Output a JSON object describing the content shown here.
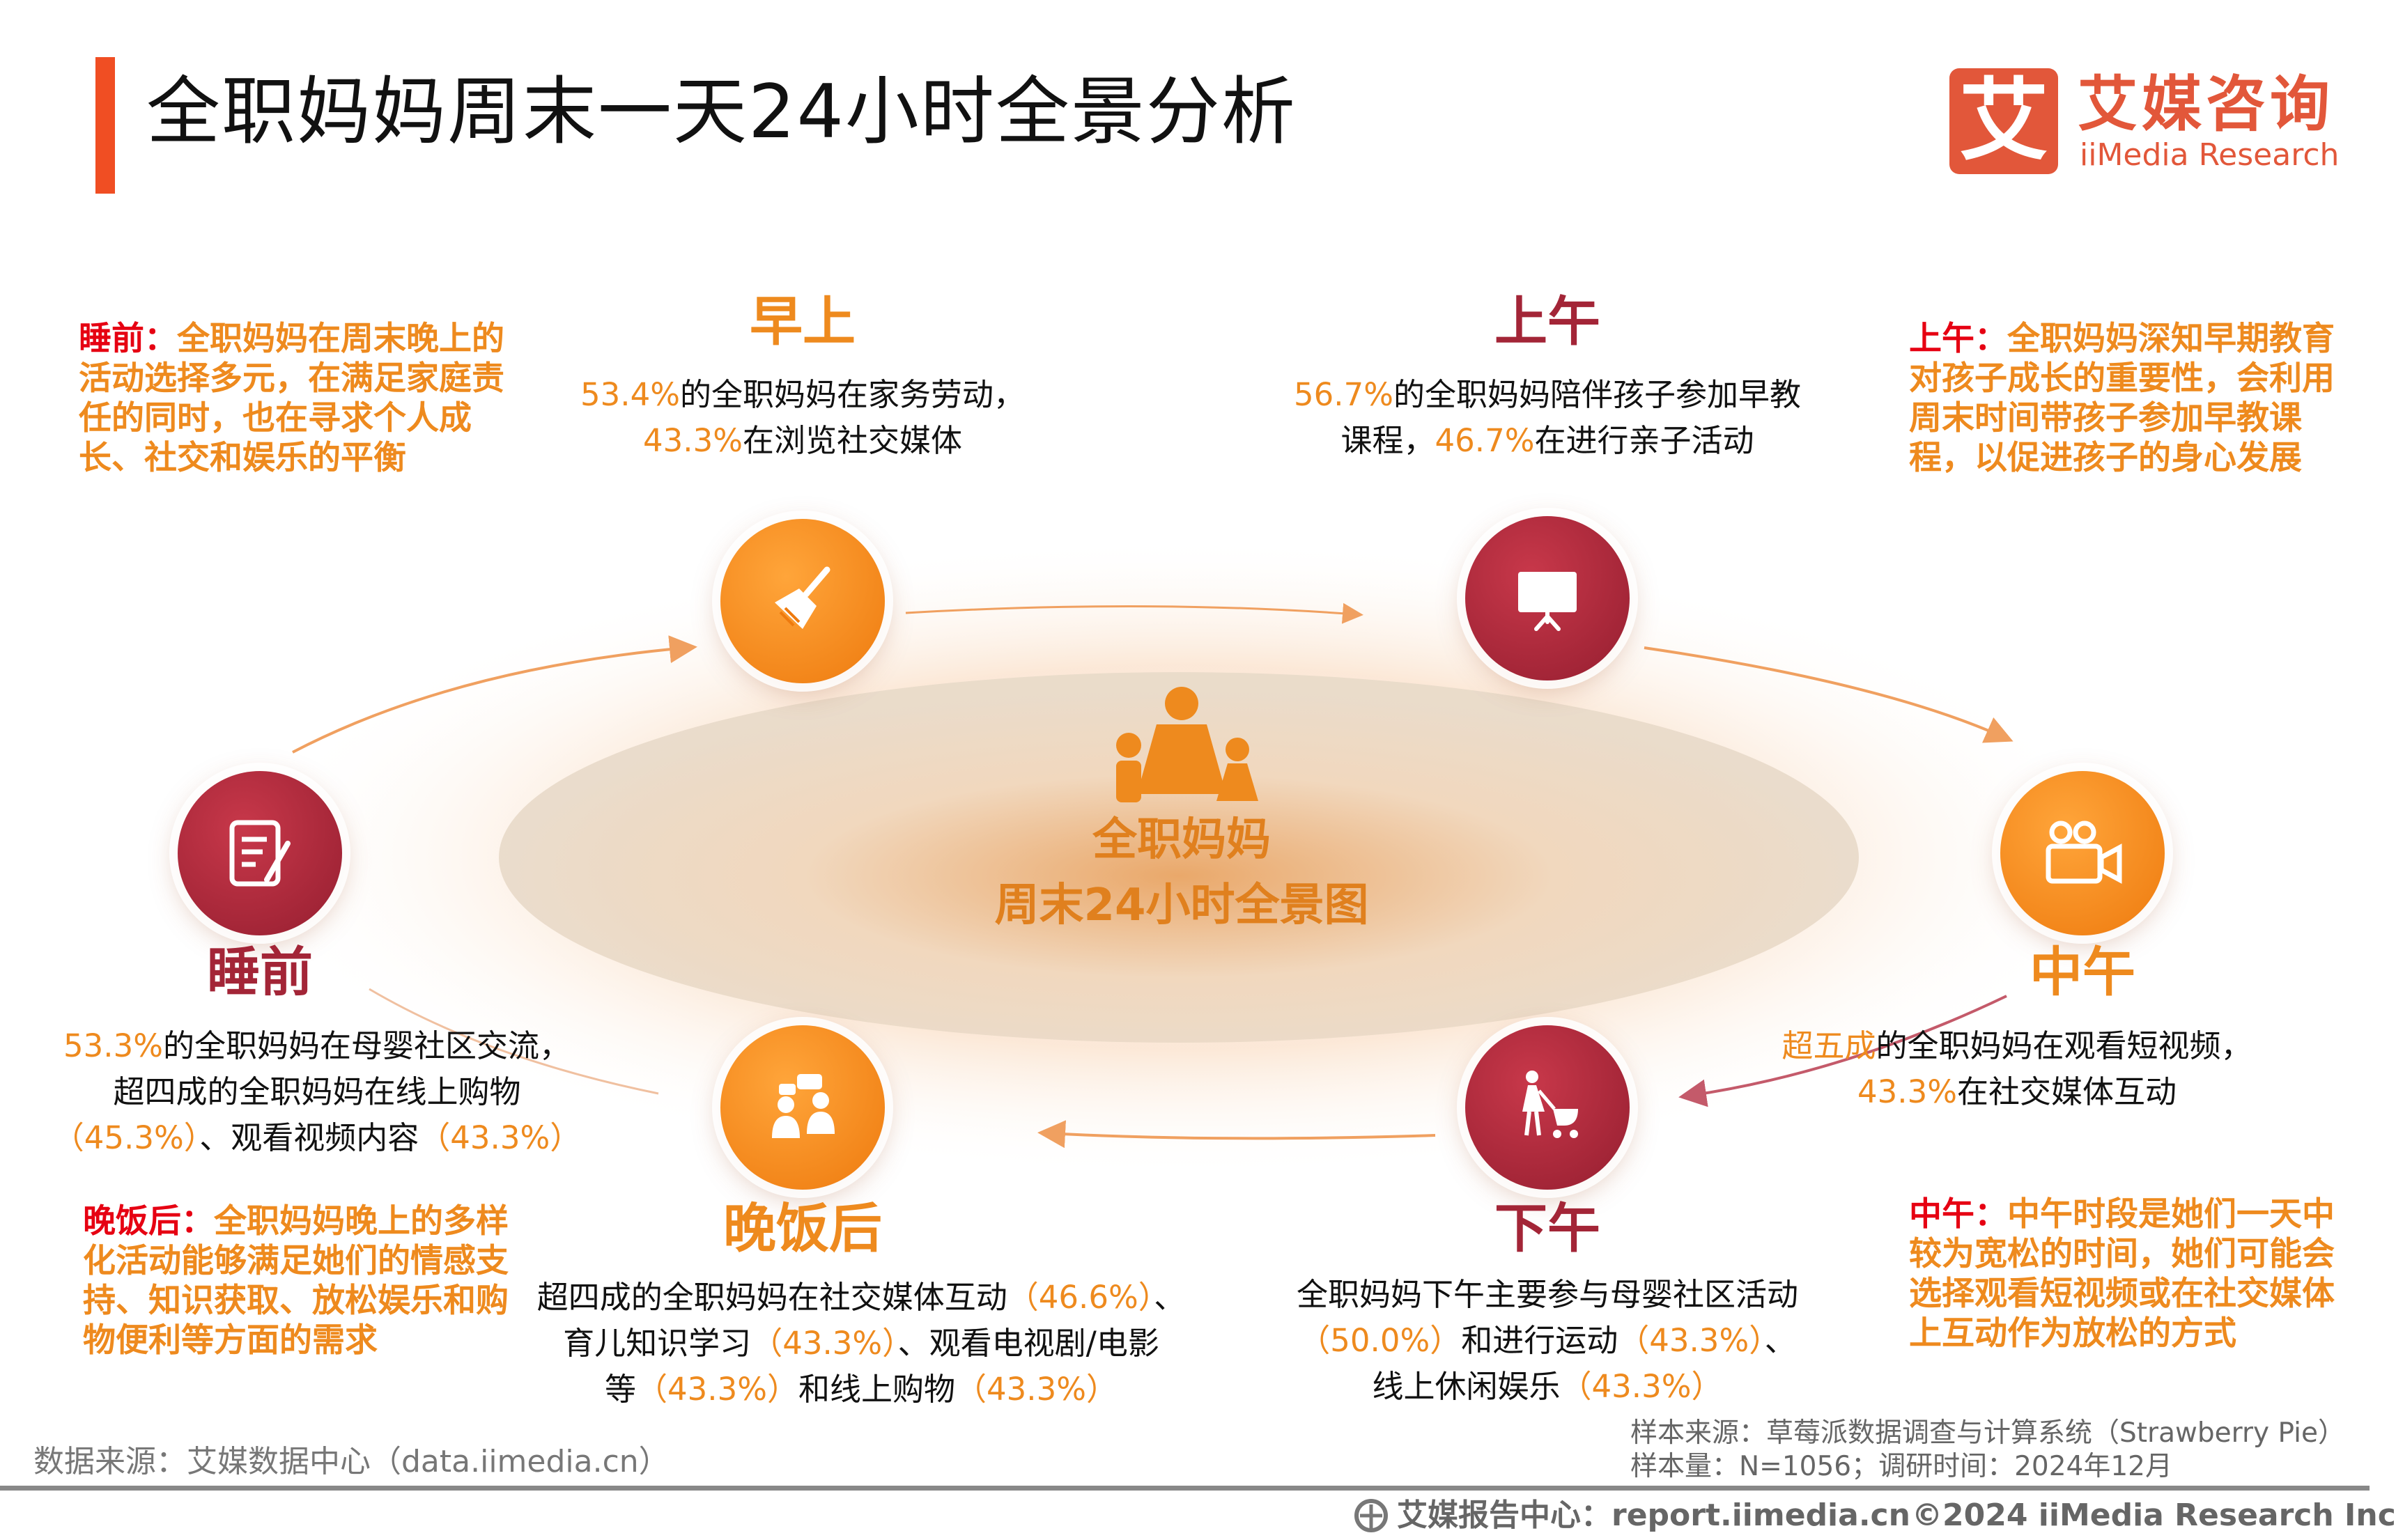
{
  "title": "全职妈妈周末一天24小时全景分析",
  "logo": {
    "mark": "艾",
    "name_cn": "艾媒咨询",
    "name_en": "iiMedia Research"
  },
  "center": {
    "line1": "全职妈妈",
    "line2": "周末24小时全景图"
  },
  "colors": {
    "orange": "#EE8A1E",
    "crimson": "#A32537",
    "note_prefix": "#E60012"
  },
  "periods": {
    "morning": {
      "label": "早上",
      "icon": "broom-icon",
      "lines": [
        [
          {
            "t": "53.4%",
            "hl": true
          },
          {
            "t": "的全职妈妈在家务劳动，"
          }
        ],
        [
          {
            "t": "43.3%",
            "hl": true
          },
          {
            "t": "在浏览社交媒体"
          }
        ]
      ]
    },
    "forenoon": {
      "label": "上午",
      "icon": "presentation-board-icon",
      "lines": [
        [
          {
            "t": "56.7%",
            "hl": true
          },
          {
            "t": "的全职妈妈陪伴孩子参加早教"
          }
        ],
        [
          {
            "t": "课程，"
          },
          {
            "t": "46.7%",
            "hl": true
          },
          {
            "t": "在进行亲子活动"
          }
        ]
      ]
    },
    "noon": {
      "label": "中午",
      "icon": "video-camera-icon",
      "lines": [
        [
          {
            "t": "超五成",
            "hl": true
          },
          {
            "t": "的全职妈妈在观看短视频，"
          }
        ],
        [
          {
            "t": "43.3%",
            "hl": true
          },
          {
            "t": "在社交媒体互动"
          }
        ]
      ]
    },
    "afternoon": {
      "label": "下午",
      "icon": "mother-stroller-icon",
      "lines": [
        [
          {
            "t": "全职妈妈下午主要参与母婴社区活动"
          }
        ],
        [
          {
            "t": "（50.0%）",
            "hl": true
          },
          {
            "t": "和进行运动"
          },
          {
            "t": "（43.3%）",
            "hl": true
          },
          {
            "t": "、"
          }
        ],
        [
          {
            "t": "线上休闲娱乐"
          },
          {
            "t": "（43.3%）",
            "hl": true
          }
        ]
      ]
    },
    "evening": {
      "label": "晚饭后",
      "icon": "chat-people-icon",
      "lines": [
        [
          {
            "t": "超四成的全职妈妈在社交媒体互动"
          },
          {
            "t": "（46.6%）",
            "hl": true
          },
          {
            "t": "、"
          }
        ],
        [
          {
            "t": "育儿知识学习"
          },
          {
            "t": "（43.3%）",
            "hl": true
          },
          {
            "t": "、观看电视剧/电影"
          }
        ],
        [
          {
            "t": "等"
          },
          {
            "t": "（43.3%）",
            "hl": true
          },
          {
            "t": "和线上购物"
          },
          {
            "t": "（43.3%）",
            "hl": true
          }
        ]
      ]
    },
    "bedtime": {
      "label": "睡前",
      "icon": "notepad-pen-icon",
      "lines": [
        [
          {
            "t": "53.3%",
            "hl": true
          },
          {
            "t": "的全职妈妈在母婴社区交流，"
          }
        ],
        [
          {
            "t": "超四成的全职妈妈在线上购物"
          }
        ],
        [
          {
            "t": "（45.3%）",
            "hl": true
          },
          {
            "t": "、观看视频内容"
          },
          {
            "t": "（43.3%）",
            "hl": true
          }
        ]
      ]
    }
  },
  "notes": {
    "bedtime": {
      "prefix": "睡前：",
      "text": "全职妈妈在周末晚上的活动选择多元，在满足家庭责任的同时，也在寻求个人成长、社交和娱乐的平衡"
    },
    "forenoon": {
      "prefix": "上午：",
      "text": "全职妈妈深知早期教育对孩子成长的重要性，会利用周末时间带孩子参加早教课程，以促进孩子的身心发展"
    },
    "evening": {
      "prefix": "晚饭后：",
      "text": "全职妈妈晚上的多样化活动能够满足她们的情感支持、知识获取、放松娱乐和购物便利等方面的需求"
    },
    "noon": {
      "prefix": "中午：",
      "text": "中午时段是她们一天中较为宽松的时间，她们可能会选择观看短视频或在社交媒体上互动作为放松的方式"
    }
  },
  "footer": {
    "data_source": "数据来源：艾媒数据中心（data.iimedia.cn）",
    "sample_source": "样本来源：草莓派数据调查与计算系统（Strawberry Pie）",
    "sample_size": "样本量：N=1056；调研时间：2024年12月",
    "report_center": "艾媒报告中心：report.iimedia.cn",
    "copyright": "©2024 iiMedia Research Inc"
  }
}
